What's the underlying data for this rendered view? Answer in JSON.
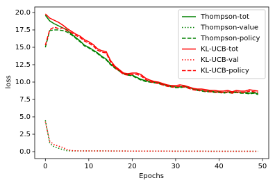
{
  "chart_data": {
    "type": "line",
    "xlabel": "Epochs",
    "ylabel": "loss",
    "x": [
      0,
      1,
      2,
      3,
      4,
      5,
      6,
      7,
      8,
      9,
      10,
      11,
      12,
      13,
      14,
      15,
      16,
      17,
      18,
      19,
      20,
      21,
      22,
      23,
      24,
      25,
      26,
      27,
      28,
      29,
      30,
      31,
      32,
      33,
      34,
      35,
      36,
      37,
      38,
      39,
      40,
      41,
      42,
      43,
      44,
      45,
      46,
      47,
      48,
      49
    ],
    "series": [
      {
        "name": "Thompson-tot",
        "color": "#008000",
        "style": "solid",
        "values": [
          19.6,
          18.8,
          18.4,
          18.1,
          17.8,
          17.5,
          16.9,
          16.4,
          15.9,
          15.3,
          15.0,
          14.6,
          14.2,
          13.7,
          13.3,
          12.6,
          12.1,
          11.7,
          11.3,
          11.1,
          11.0,
          10.7,
          10.4,
          10.2,
          10.1,
          10.0,
          9.9,
          9.7,
          9.6,
          9.4,
          9.3,
          9.3,
          9.4,
          9.3,
          9.1,
          8.9,
          8.8,
          8.7,
          8.7,
          8.6,
          8.6,
          8.5,
          8.6,
          8.5,
          8.6,
          8.5,
          8.5,
          8.4,
          8.5,
          8.3
        ]
      },
      {
        "name": "Thompson-value",
        "color": "#008000",
        "style": "dotted",
        "values": [
          4.5,
          1.2,
          0.7,
          0.5,
          0.3,
          0.12,
          0.1,
          0.1,
          0.1,
          0.1,
          0.1,
          0.1,
          0.1,
          0.1,
          0.1,
          0.09,
          0.09,
          0.09,
          0.09,
          0.08,
          0.08,
          0.08,
          0.08,
          0.08,
          0.07,
          0.07,
          0.07,
          0.07,
          0.07,
          0.07,
          0.06,
          0.06,
          0.06,
          0.06,
          0.06,
          0.06,
          0.06,
          0.06,
          0.05,
          0.05,
          0.05,
          0.05,
          0.05,
          0.05,
          0.05,
          0.05,
          0.05,
          0.05,
          0.05,
          0.05
        ]
      },
      {
        "name": "Thompson-policy",
        "color": "#008000",
        "style": "dashed",
        "values": [
          15.0,
          17.4,
          17.5,
          17.5,
          17.4,
          17.2,
          16.8,
          16.3,
          15.8,
          15.2,
          14.9,
          14.5,
          14.1,
          13.6,
          13.2,
          12.5,
          12.0,
          11.6,
          11.2,
          11.0,
          10.9,
          10.6,
          10.3,
          10.1,
          10.0,
          9.9,
          9.8,
          9.6,
          9.5,
          9.3,
          9.2,
          9.2,
          9.3,
          9.2,
          9.0,
          8.8,
          8.7,
          8.6,
          8.6,
          8.5,
          8.5,
          8.4,
          8.5,
          8.4,
          8.5,
          8.4,
          8.4,
          8.3,
          8.4,
          8.2
        ]
      },
      {
        "name": "KL-UCB-tot",
        "color": "#ff0000",
        "style": "solid",
        "values": [
          19.8,
          19.2,
          18.9,
          18.6,
          18.2,
          17.7,
          17.3,
          16.9,
          16.6,
          16.1,
          15.8,
          15.4,
          14.8,
          14.5,
          14.4,
          13.1,
          12.3,
          11.8,
          11.3,
          11.2,
          11.3,
          11.3,
          11.1,
          10.6,
          10.3,
          10.1,
          10.0,
          9.8,
          9.6,
          9.5,
          9.5,
          9.6,
          9.5,
          9.3,
          9.1,
          9.0,
          9.0,
          8.9,
          8.8,
          8.8,
          8.7,
          8.7,
          8.8,
          8.6,
          8.8,
          8.7,
          8.7,
          8.9,
          8.8,
          8.7
        ]
      },
      {
        "name": "KL-UCB-val",
        "color": "#ff0000",
        "style": "dotted",
        "values": [
          4.3,
          1.5,
          1.0,
          0.8,
          0.6,
          0.3,
          0.15,
          0.12,
          0.1,
          0.1,
          0.1,
          0.1,
          0.1,
          0.1,
          0.1,
          0.09,
          0.09,
          0.09,
          0.09,
          0.08,
          0.08,
          0.08,
          0.08,
          0.08,
          0.07,
          0.07,
          0.07,
          0.07,
          0.07,
          0.07,
          0.06,
          0.06,
          0.06,
          0.06,
          0.06,
          0.06,
          0.06,
          0.06,
          0.05,
          0.05,
          0.05,
          0.05,
          0.05,
          0.05,
          0.05,
          0.05,
          0.05,
          0.05,
          0.05,
          0.05
        ]
      },
      {
        "name": "KL-UCB-policy",
        "color": "#ff0000",
        "style": "dashed",
        "values": [
          15.3,
          17.5,
          17.9,
          17.7,
          17.8,
          17.4,
          17.1,
          16.7,
          16.4,
          15.9,
          15.6,
          15.2,
          14.6,
          14.3,
          14.2,
          12.9,
          12.1,
          11.6,
          11.1,
          11.0,
          11.1,
          11.1,
          10.9,
          10.4,
          10.1,
          9.9,
          9.8,
          9.6,
          9.4,
          9.3,
          9.3,
          9.4,
          9.3,
          9.1,
          8.9,
          8.8,
          8.8,
          8.7,
          8.6,
          8.6,
          8.5,
          8.5,
          8.6,
          8.4,
          8.6,
          8.5,
          8.5,
          8.7,
          8.6,
          8.5
        ]
      }
    ],
    "xlim": [
      -2.45,
      51.45
    ],
    "xticks": [
      0,
      10,
      20,
      30,
      40,
      50
    ],
    "ylim": [
      -1,
      20.8
    ],
    "yticks": [
      {
        "value": 0,
        "label": "0.0"
      },
      {
        "value": 2.5,
        "label": "2.5"
      },
      {
        "value": 5,
        "label": "5.0"
      },
      {
        "value": 7.5,
        "label": "7.5"
      },
      {
        "value": 10,
        "label": "10.0"
      },
      {
        "value": 12.5,
        "label": "12.5"
      },
      {
        "value": 15,
        "label": "15.0"
      },
      {
        "value": 17.5,
        "label": "17.5"
      },
      {
        "value": 20,
        "label": "20.0"
      }
    ],
    "legend": "upper right"
  }
}
